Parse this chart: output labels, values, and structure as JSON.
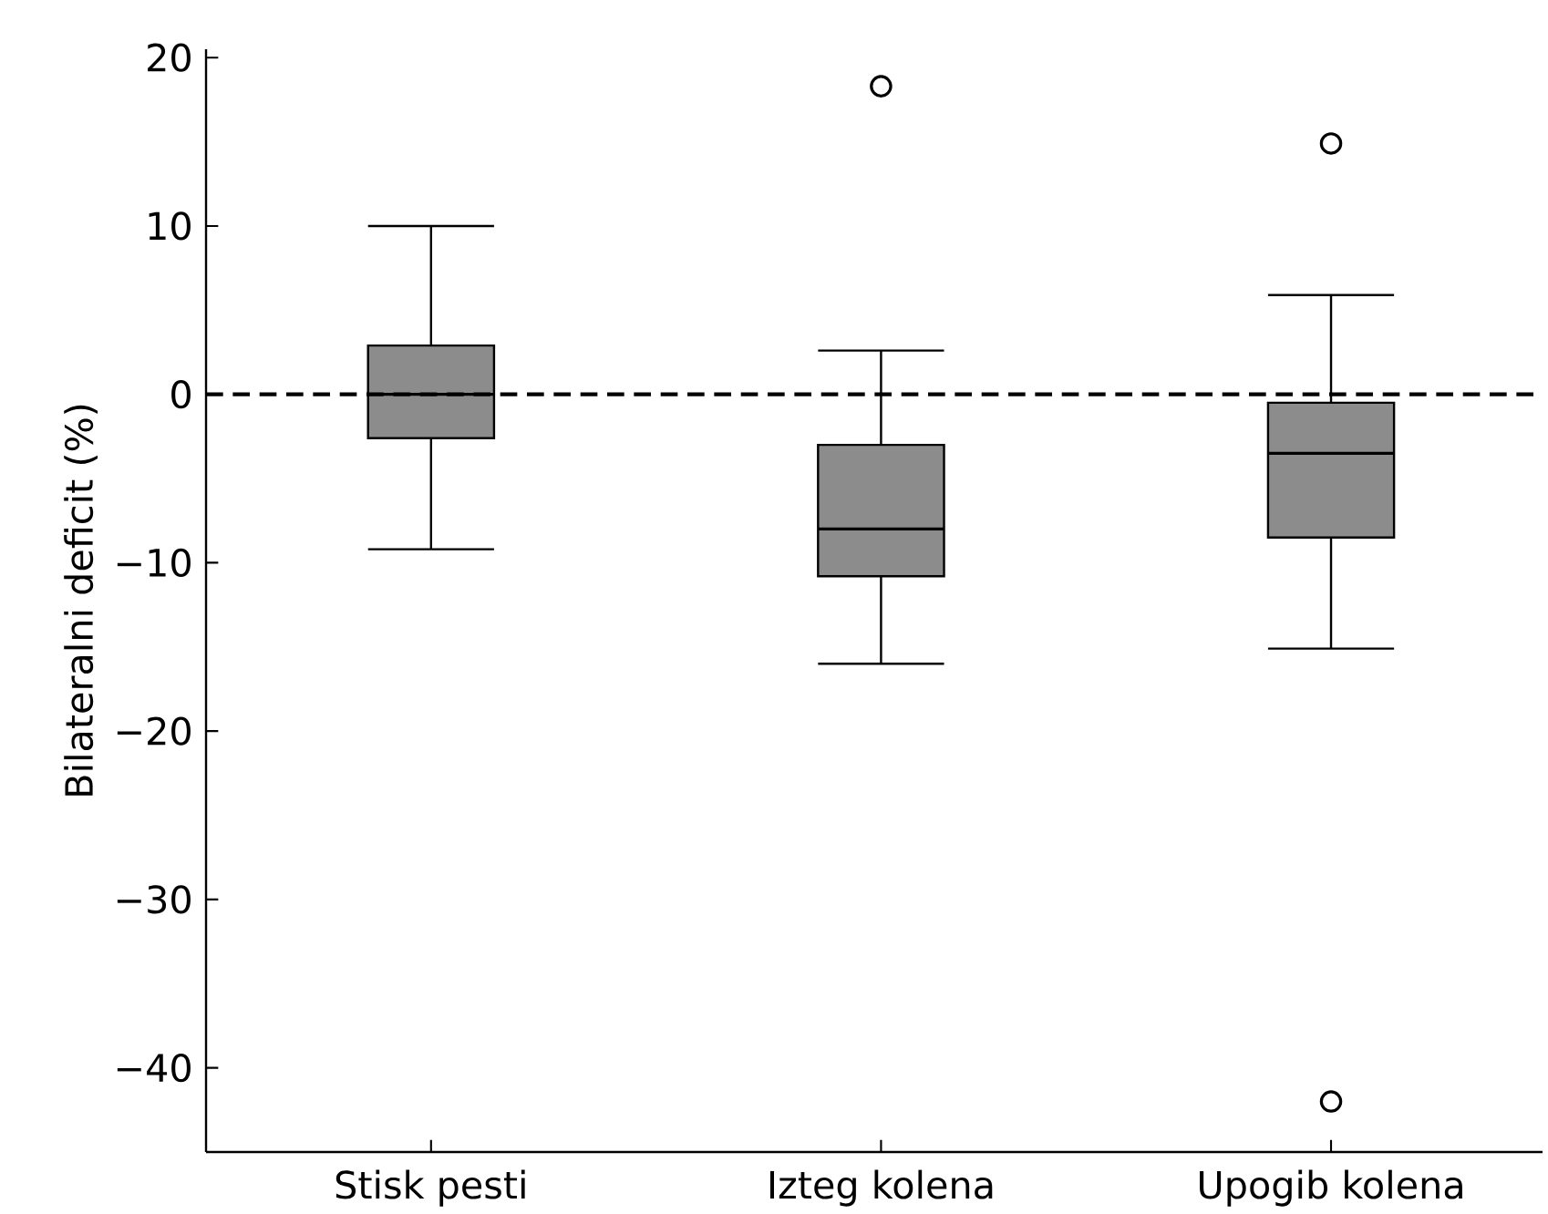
{
  "chart_data": {
    "type": "box",
    "ylabel": "Bilateralni deficit (%)",
    "categories": [
      "Stisk pesti",
      "Izteg kolena",
      "Upogib kolena"
    ],
    "color": "#8c8c8c",
    "boxes": [
      {
        "low": -9.2,
        "q1": -2.6,
        "median": 0,
        "q3": 2.9,
        "high": 10
      },
      {
        "low": -16,
        "q1": -10.8,
        "median": -8,
        "q3": -3,
        "high": 2.6,
        "outliers": [
          18.3
        ]
      },
      {
        "low": -15.1,
        "q1": -8.5,
        "median": -3.5,
        "q3": -0.5,
        "high": 5.9,
        "outliers": [
          14.9,
          -42
        ]
      }
    ],
    "ylim": [
      -45,
      20.5
    ],
    "yticks": [
      {
        "value": -40,
        "label": "−40"
      },
      {
        "value": -30,
        "label": "−30"
      },
      {
        "value": -20,
        "label": "−20"
      },
      {
        "value": -10,
        "label": "−10"
      },
      0,
      10,
      20
    ],
    "ref_lines": [
      {
        "axis": "y",
        "value": 0,
        "line_style": "dashed",
        "color": "#000000"
      }
    ],
    "marker": "circle",
    "grid": false
  }
}
